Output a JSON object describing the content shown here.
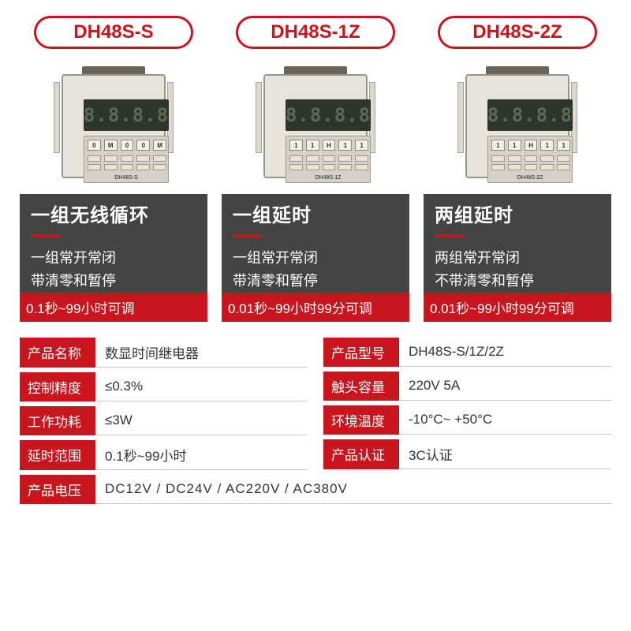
{
  "colors": {
    "accent": "#c9151e",
    "panel_bg": "#444444",
    "text_light": "#ffffff",
    "device_body": "#e7e3da",
    "device_screen": "#2e352c"
  },
  "products": [
    {
      "model": "DH48S-S",
      "device_label": "DH48S-S",
      "digits": "8.8.8.8",
      "dials": [
        "0",
        "M",
        "0",
        "0",
        "M"
      ],
      "headline": "一组无线循环",
      "desc_line1": "一组常开常闭",
      "desc_line2": "带清零和暂停",
      "range": "0.1秒~99小时可调"
    },
    {
      "model": "DH48S-1Z",
      "device_label": "DH48S-1Z",
      "digits": "8.8.8.8",
      "dials": [
        "1",
        "1",
        "H",
        "1",
        "1"
      ],
      "headline": "一组延时",
      "desc_line1": "一组常开常闭",
      "desc_line2": "带清零和暂停",
      "range": "0.01秒~99小时99分可调"
    },
    {
      "model": "DH48S-2Z",
      "device_label": "DH48S-2Z",
      "digits": "8.8.8.8",
      "dials": [
        "1",
        "1",
        "H",
        "1",
        "1"
      ],
      "headline": "两组延时",
      "desc_line1": "两组常开常闭",
      "desc_line2": "不带清零和暂停",
      "range": "0.01秒~99小时99分可调"
    }
  ],
  "specs_left": [
    {
      "label": "产品名称",
      "value": "数显时间继电器"
    },
    {
      "label": "控制精度",
      "value": "≤0.3%"
    },
    {
      "label": "工作功耗",
      "value": "≤3W"
    },
    {
      "label": "延时范围",
      "value": "0.1秒~99小时"
    }
  ],
  "specs_right": [
    {
      "label": "产品型号",
      "value": "DH48S-S/1Z/2Z"
    },
    {
      "label": "触头容量",
      "value": "220V  5A"
    },
    {
      "label": "环境温度",
      "value": "-10°C~ +50°C"
    },
    {
      "label": "产品认证",
      "value": "3C认证"
    }
  ],
  "spec_full": {
    "label": "产品电压",
    "value": "DC12V   /   DC24V   /   AC220V   /   AC380V"
  }
}
